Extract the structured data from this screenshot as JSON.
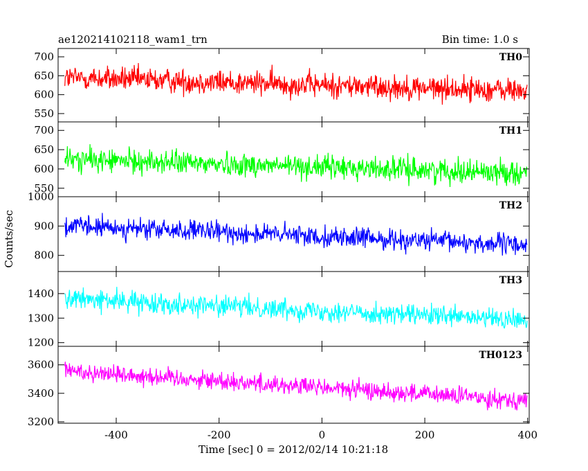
{
  "title_left": "ae120214102118_wam1_trn",
  "title_right": "Bin time: 1.0 s",
  "xlabel": "Time [sec] 0 = 2012/02/14 10:21:18",
  "ylabel": "Counts/sec",
  "chart_data": {
    "type": "line",
    "x_range": [
      -513,
      403
    ],
    "x_ticks": [
      -400,
      -200,
      0,
      200,
      400
    ],
    "panels": [
      {
        "name": "TH0",
        "color": "#ff0000",
        "y_range": [
          528,
          722
        ],
        "y_ticks": [
          550,
          600,
          650,
          700
        ],
        "trend": [
          [
            -500,
            645
          ],
          [
            0,
            625
          ],
          [
            400,
            610
          ]
        ],
        "noise_amplitude": 30
      },
      {
        "name": "TH1",
        "color": "#00ff00",
        "y_range": [
          528,
          722
        ],
        "y_ticks": [
          550,
          600,
          650,
          700
        ],
        "trend": [
          [
            -500,
            625
          ],
          [
            0,
            605
          ],
          [
            400,
            590
          ]
        ],
        "noise_amplitude": 28
      },
      {
        "name": "TH2",
        "color": "#0000ff",
        "y_range": [
          745,
          1000
        ],
        "y_ticks": [
          800,
          900,
          1000
        ],
        "trend": [
          [
            -500,
            900
          ],
          [
            0,
            865
          ],
          [
            400,
            835
          ]
        ],
        "noise_amplitude": 32
      },
      {
        "name": "TH3",
        "color": "#00ffff",
        "y_range": [
          1185,
          1490
        ],
        "y_ticks": [
          1200,
          1300,
          1400
        ],
        "trend": [
          [
            -500,
            1380
          ],
          [
            0,
            1330
          ],
          [
            400,
            1290
          ]
        ],
        "noise_amplitude": 38
      },
      {
        "name": "TH0123",
        "color": "#ff00ff",
        "y_range": [
          3190,
          3730
        ],
        "y_ticks": [
          3200,
          3400,
          3600
        ],
        "trend": [
          [
            -500,
            3560
          ],
          [
            0,
            3440
          ],
          [
            400,
            3350
          ]
        ],
        "noise_amplitude": 60
      }
    ]
  }
}
